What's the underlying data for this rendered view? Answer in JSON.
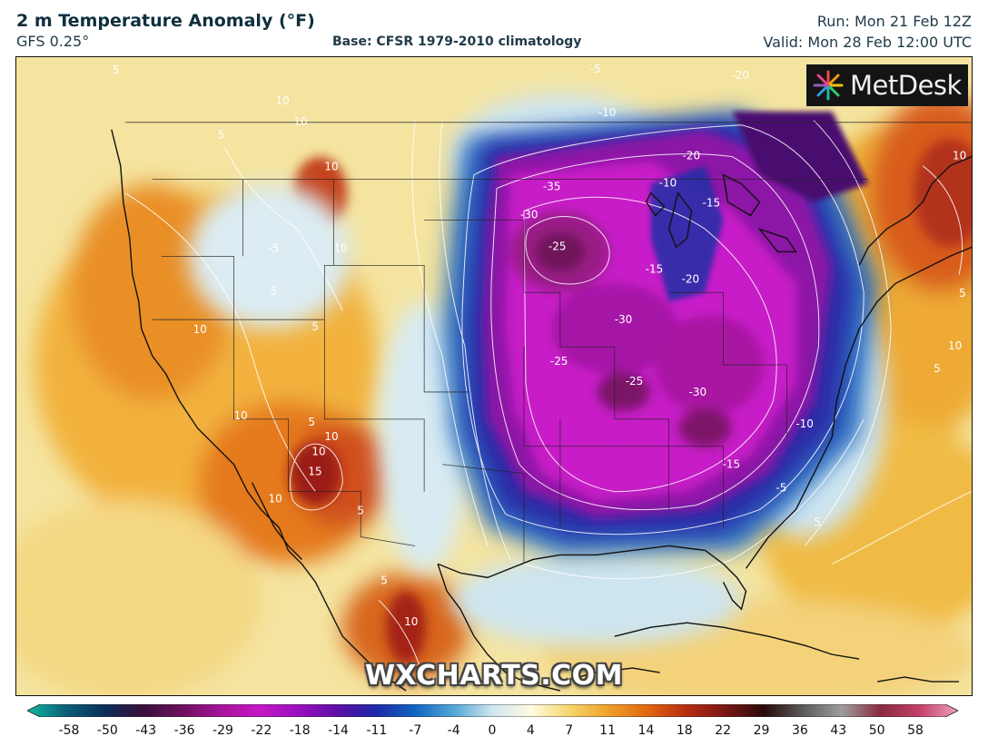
{
  "header": {
    "title": "2 m Temperature Anomaly (°F)",
    "model": "GFS 0.25°",
    "base": "Base: CFSR 1979-2010 climatology",
    "run": "Run: Mon 21 Feb 12Z",
    "valid": "Valid: Mon 28 Feb 12:00 UTC"
  },
  "branding": {
    "logo_text": "MetDesk",
    "logo_icon": "metdesk-starburst-icon",
    "watermark": "WXCHARTS.COM"
  },
  "map": {
    "contour_labels": [
      {
        "text": "5"
      },
      {
        "text": "10"
      },
      {
        "text": "10"
      },
      {
        "text": "10"
      },
      {
        "text": "5"
      },
      {
        "text": "-5"
      },
      {
        "text": "10"
      },
      {
        "text": "5"
      },
      {
        "text": "10"
      },
      {
        "text": "5"
      },
      {
        "text": "10"
      },
      {
        "text": "5"
      },
      {
        "text": "10"
      },
      {
        "text": "15"
      },
      {
        "text": "10"
      },
      {
        "text": "5"
      },
      {
        "text": "5"
      },
      {
        "text": "10"
      },
      {
        "text": "10"
      },
      {
        "text": "-5"
      },
      {
        "text": "-10"
      },
      {
        "text": "-20"
      },
      {
        "text": "-35"
      },
      {
        "text": "-30"
      },
      {
        "text": "-25"
      },
      {
        "text": "-20"
      },
      {
        "text": "-10"
      },
      {
        "text": "-15"
      },
      {
        "text": "-15"
      },
      {
        "text": "-20"
      },
      {
        "text": "-30"
      },
      {
        "text": "-25"
      },
      {
        "text": "-25"
      },
      {
        "text": "-30"
      },
      {
        "text": "-10"
      },
      {
        "text": "-15"
      },
      {
        "text": "-5"
      },
      {
        "text": "5"
      },
      {
        "text": "10"
      },
      {
        "text": "5"
      },
      {
        "text": "10"
      },
      {
        "text": "5"
      }
    ]
  },
  "colorbar": {
    "ticks": [
      "-58",
      "-50",
      "-43",
      "-36",
      "-29",
      "-22",
      "-18",
      "-14",
      "-11",
      "-7",
      "-4",
      "0",
      "4",
      "7",
      "11",
      "14",
      "18",
      "22",
      "29",
      "36",
      "43",
      "50",
      "58"
    ],
    "colors": [
      "#0fb8a0",
      "#0b5f78",
      "#0a2e57",
      "#3a0f3a",
      "#6e1060",
      "#a5149a",
      "#c418c4",
      "#9a10c0",
      "#5c0fa6",
      "#1d2aa8",
      "#1065c0",
      "#54a7d6",
      "#cfe6f0",
      "#fffbe0",
      "#f5d56a",
      "#eea02a",
      "#e06612",
      "#b62d10",
      "#7a1616",
      "#2a0a0a",
      "#5b5b5b",
      "#9e9e9e",
      "#8a2a3e",
      "#c4406a",
      "#f0a0c0"
    ]
  }
}
